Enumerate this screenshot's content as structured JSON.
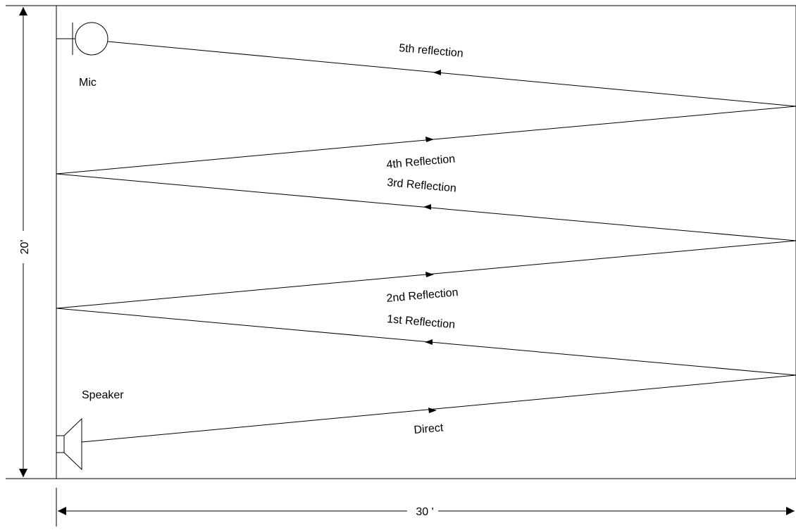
{
  "diagram": {
    "labels": {
      "mic": "Mic",
      "speaker": "Speaker",
      "height": "20'",
      "width": "30 '"
    },
    "paths": [
      {
        "id": "direct",
        "label": "Direct",
        "direction": "right"
      },
      {
        "id": "first",
        "label": "1st Reflection",
        "direction": "left"
      },
      {
        "id": "second",
        "label": "2nd Reflection",
        "direction": "right"
      },
      {
        "id": "third",
        "label": "3rd Reflection",
        "direction": "left"
      },
      {
        "id": "fourth",
        "label": "4th Reflection",
        "direction": "right"
      },
      {
        "id": "fifth",
        "label": "5th reflection",
        "direction": "left"
      }
    ],
    "colors": {
      "line": "#000000",
      "background": "#ffffff"
    }
  }
}
